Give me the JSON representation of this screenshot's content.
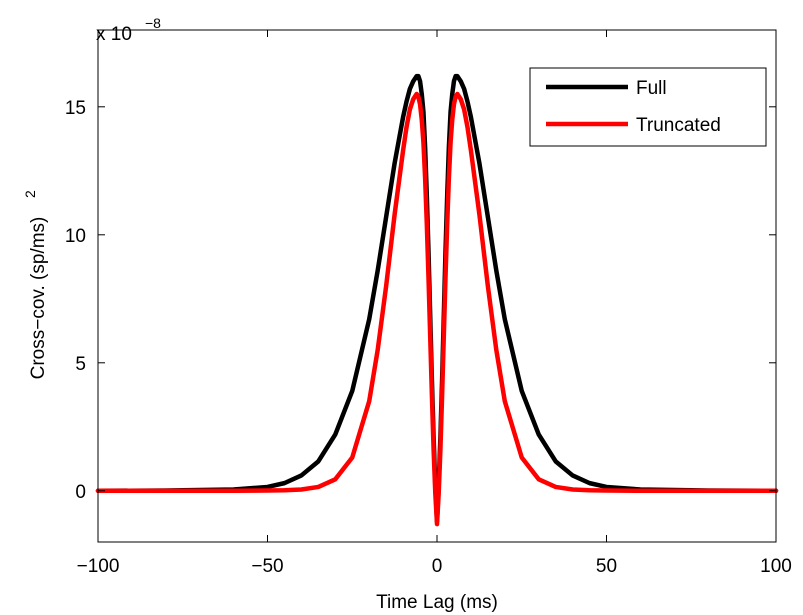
{
  "chart_data": {
    "type": "line",
    "xlabel": "Time Lag (ms)",
    "ylabel": "Cross−cov. (sp/ms)",
    "ylabel_superscript": "2",
    "y_multiplier": {
      "base": "x 10",
      "exponent": "−8"
    },
    "xlim": [
      -100,
      100
    ],
    "ylim": [
      -2,
      18
    ],
    "x_ticks": [
      -100,
      -50,
      0,
      50,
      100
    ],
    "x_tick_labels": [
      "−100",
      "−50",
      "0",
      "50",
      "100"
    ],
    "y_ticks": [
      0,
      5,
      10,
      15
    ],
    "y_tick_labels": [
      "0",
      "5",
      "10",
      "15"
    ],
    "grid": false,
    "legend_position": "top-right",
    "series": [
      {
        "name": "Full",
        "color": "#000000",
        "x": [
          -100,
          -80,
          -60,
          -50,
          -45,
          -40,
          -35,
          -30,
          -25,
          -20,
          -17.5,
          -15,
          -12.5,
          -10,
          -9,
          -8,
          -7,
          -6,
          -5.5,
          -5,
          -4.5,
          -4,
          -3.5,
          -3,
          -2.5,
          -2,
          -1.5,
          -1,
          -0.5,
          0,
          0.5,
          1,
          1.5,
          2,
          2.5,
          3,
          3.5,
          4,
          4.5,
          5,
          5.5,
          6,
          7,
          8,
          9,
          10,
          12.5,
          15,
          17.5,
          20,
          25,
          30,
          35,
          40,
          45,
          50,
          60,
          80,
          100
        ],
        "y": [
          0,
          0.01,
          0.05,
          0.15,
          0.3,
          0.6,
          1.15,
          2.2,
          3.9,
          6.7,
          8.6,
          10.7,
          12.8,
          14.6,
          15.2,
          15.7,
          16.0,
          16.2,
          16.2,
          16.0,
          15.5,
          14.8,
          13.4,
          11.5,
          9.3,
          6.8,
          4.3,
          2.1,
          0.2,
          -1.2,
          0.2,
          2.1,
          4.3,
          6.8,
          9.3,
          11.5,
          13.4,
          14.8,
          15.5,
          16.0,
          16.2,
          16.2,
          16.0,
          15.7,
          15.2,
          14.6,
          12.8,
          10.7,
          8.6,
          6.7,
          3.9,
          2.2,
          1.15,
          0.6,
          0.3,
          0.15,
          0.05,
          0.01,
          0
        ]
      },
      {
        "name": "Truncated",
        "color": "#ff0000",
        "x": [
          -100,
          -80,
          -60,
          -50,
          -45,
          -40,
          -35,
          -30,
          -25,
          -20,
          -17.5,
          -15,
          -12.5,
          -10,
          -9,
          -8,
          -7,
          -6,
          -5.5,
          -5,
          -4.5,
          -4,
          -3.5,
          -3,
          -2.5,
          -2,
          -1.5,
          -1,
          -0.5,
          0,
          0.5,
          1,
          1.5,
          2,
          2.5,
          3,
          3.5,
          4,
          4.5,
          5,
          5.5,
          6,
          7,
          8,
          9,
          10,
          12.5,
          15,
          17.5,
          20,
          25,
          30,
          35,
          40,
          45,
          50,
          60,
          80,
          100
        ],
        "y": [
          0,
          0,
          0,
          0.01,
          0.02,
          0.05,
          0.15,
          0.45,
          1.3,
          3.5,
          5.5,
          8.0,
          10.8,
          13.3,
          14.2,
          14.9,
          15.3,
          15.5,
          15.4,
          15.1,
          14.5,
          13.6,
          12.2,
          10.4,
          8.3,
          6.0,
          3.7,
          1.6,
          -0.1,
          -1.3,
          -0.1,
          1.6,
          3.7,
          6.0,
          8.3,
          10.4,
          12.2,
          13.6,
          14.5,
          15.1,
          15.4,
          15.5,
          15.3,
          14.9,
          14.2,
          13.3,
          10.8,
          8.0,
          5.5,
          3.5,
          1.3,
          0.45,
          0.15,
          0.05,
          0.02,
          0.01,
          0,
          0,
          0
        ]
      }
    ]
  }
}
